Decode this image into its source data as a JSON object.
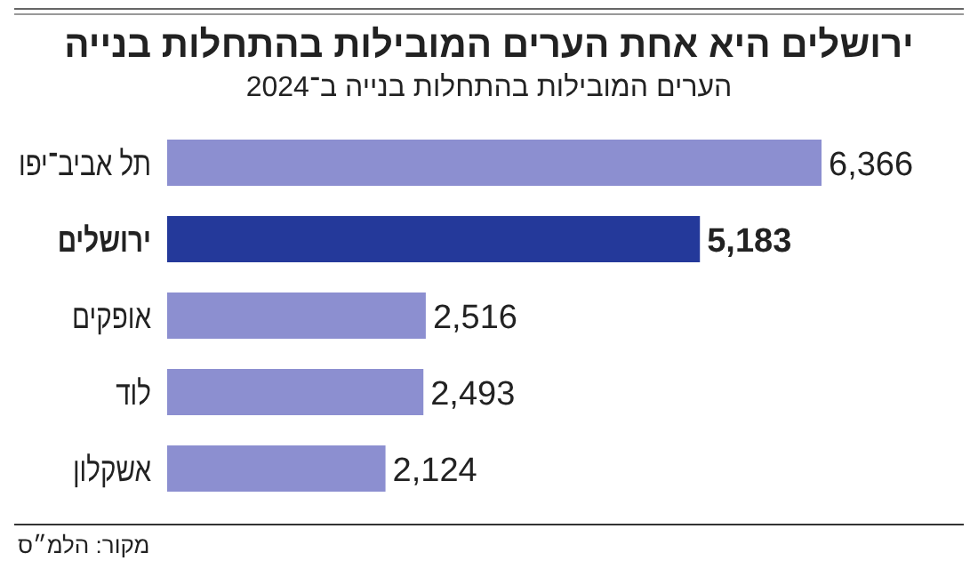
{
  "chart_data": {
    "type": "bar",
    "orientation": "horizontal",
    "title": "ירושלים היא אחת הערים המובילות בהתחלות בנייה",
    "subtitle": "הערים המובילות בהתחלות בנייה ב־2024",
    "categories": [
      "תל אביב־יפו",
      "ירושלים",
      "אופקים",
      "לוד",
      "אשקלון"
    ],
    "values": [
      6366,
      5183,
      2516,
      2493,
      2124
    ],
    "colors": [
      "#8c8fd0",
      "#24399a",
      "#8c8fd0",
      "#8c8fd0",
      "#8c8fd0"
    ],
    "value_labels": [
      "6,366",
      "5,183",
      "2,516",
      "2,493",
      "2,124"
    ],
    "annotations": [
      "מקור: הלמ״ס"
    ]
  }
}
